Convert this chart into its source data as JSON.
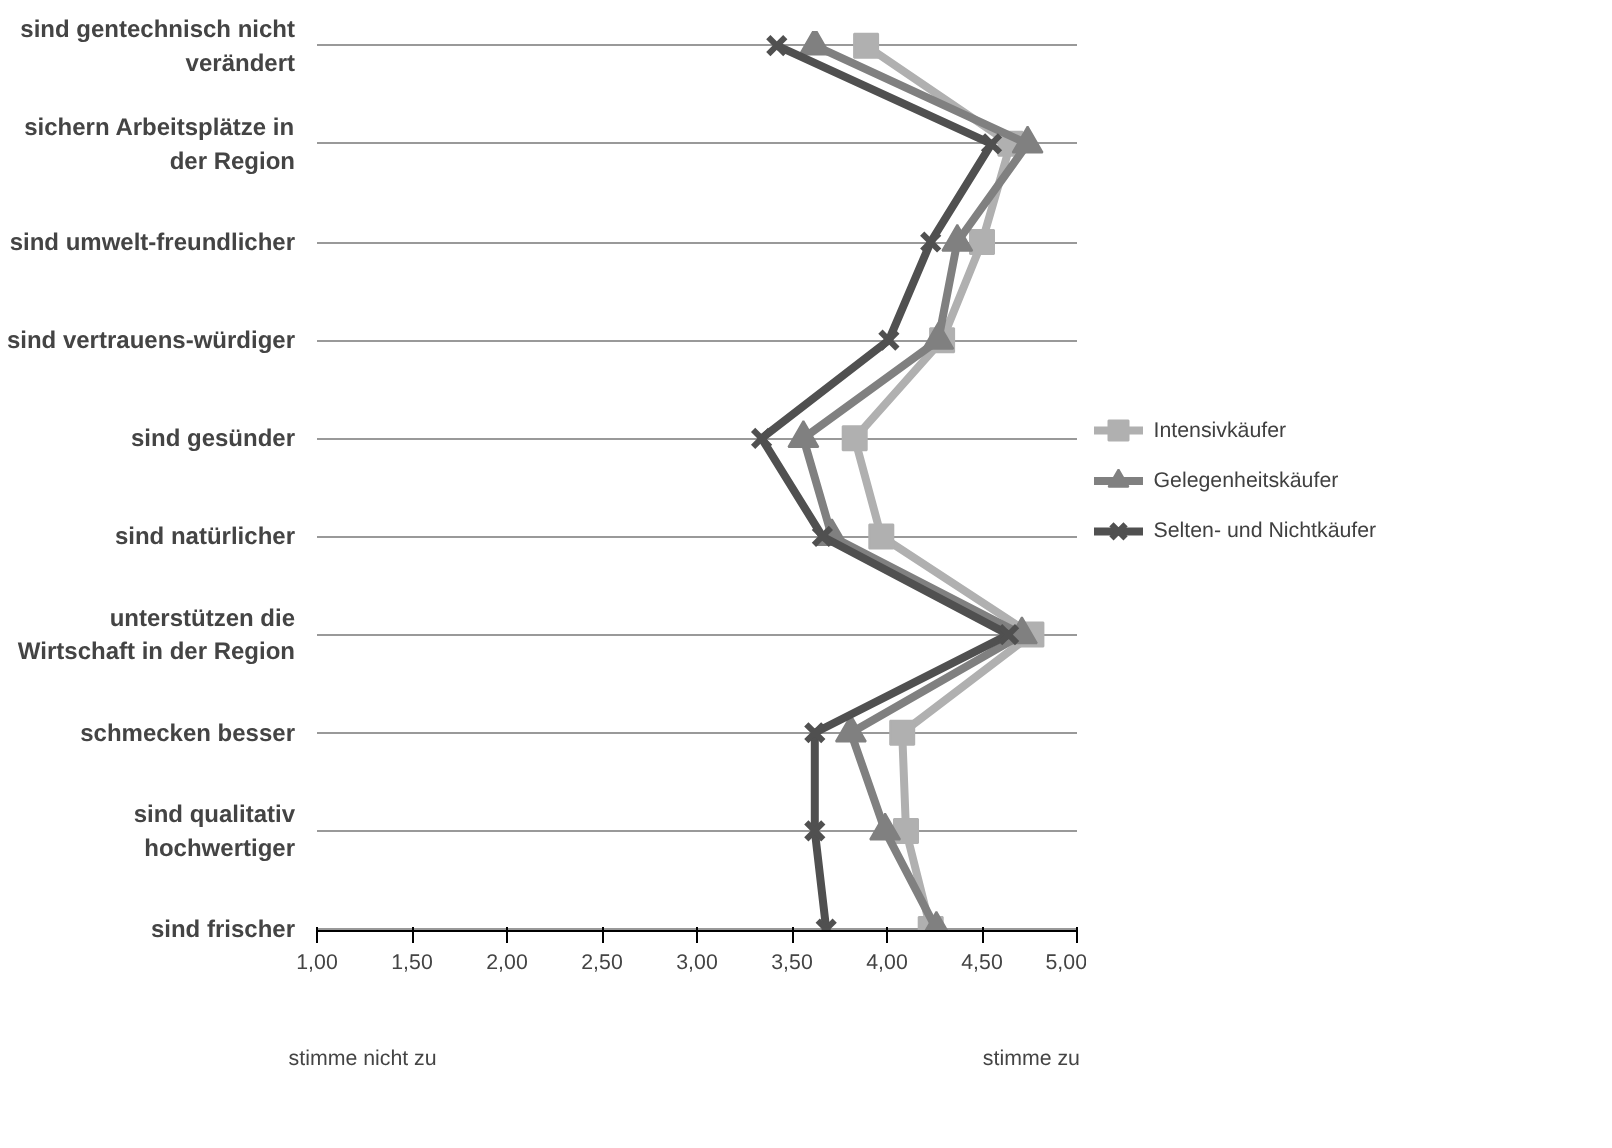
{
  "chart_data": {
    "type": "line",
    "orientation": "horizontal",
    "categories": [
      "sind gentechnisch nicht verändert",
      "sichern Arbeitsplätze in der Region",
      "sind umwelt-freundlicher",
      "sind vertrauens-würdiger",
      "sind gesünder",
      "sind natürlicher",
      "unterstützen die Wirtschaft in der Region",
      "schmecken besser",
      "sind qualitativ hochwertiger",
      "sind frischer"
    ],
    "series": [
      {
        "name": "Intensivkäufer",
        "color": "#b0b0b0",
        "marker": "square",
        "values": [
          3.89,
          4.65,
          4.5,
          4.29,
          3.83,
          3.97,
          4.76,
          4.08,
          4.1,
          4.23
        ]
      },
      {
        "name": "Gelegenheitskäufer",
        "color": "#808080",
        "marker": "triangle",
        "values": [
          3.62,
          4.74,
          4.37,
          4.27,
          3.56,
          3.71,
          4.71,
          3.81,
          3.99,
          4.26
        ]
      },
      {
        "name": "Selten- und Nichtkäufer",
        "color": "#505050",
        "marker": "cross",
        "values": [
          3.42,
          4.55,
          4.23,
          4.01,
          3.34,
          3.66,
          4.64,
          3.62,
          3.62,
          3.68
        ]
      }
    ],
    "xlim": [
      1,
      5
    ],
    "xticks": [
      {
        "value": 1,
        "label": "1,00"
      },
      {
        "value": 1.5,
        "label": "1,50"
      },
      {
        "value": 2,
        "label": "2,00"
      },
      {
        "value": 2.5,
        "label": "2,50"
      },
      {
        "value": 3,
        "label": "3,00"
      },
      {
        "value": 3.5,
        "label": "3,50"
      },
      {
        "value": 4,
        "label": "4,00"
      },
      {
        "value": 4.5,
        "label": "4,50"
      },
      {
        "value": 5,
        "label": "5,00"
      }
    ],
    "grid": "y",
    "legend": "right",
    "annotations": [
      "stimme nicht zu",
      "stimme zu"
    ]
  }
}
